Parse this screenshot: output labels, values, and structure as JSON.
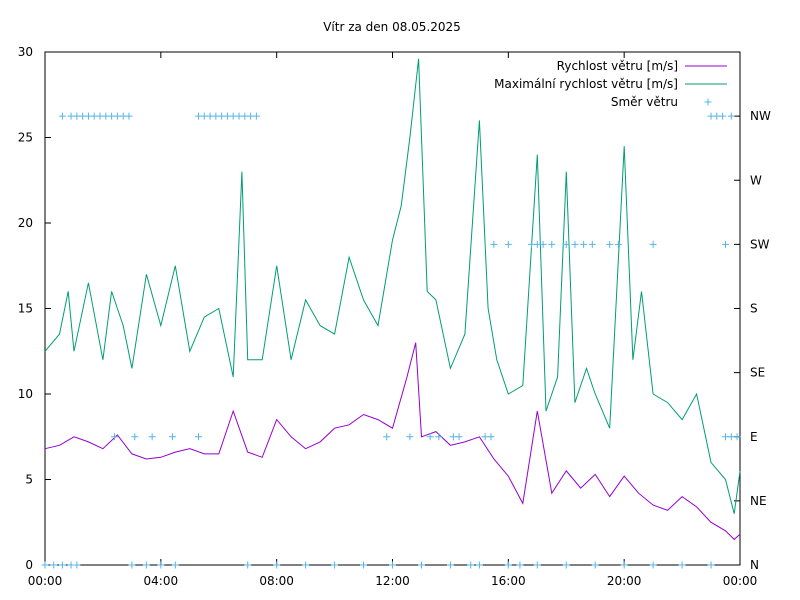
{
  "chart_data": {
    "type": "line",
    "title": "Vítr za den 08.05.2025",
    "x_ticks": [
      "00:00",
      "04:00",
      "08:00",
      "12:00",
      "16:00",
      "20:00",
      "00:00"
    ],
    "xlim_hours": [
      0,
      24
    ],
    "y_left": {
      "ylim": [
        0,
        30
      ],
      "ticks": [
        "0",
        "5",
        "10",
        "15",
        "20",
        "25",
        "30"
      ]
    },
    "y_right": {
      "ticks": [
        "N",
        "NE",
        "E",
        "SE",
        "S",
        "SW",
        "W",
        "NW"
      ]
    },
    "grid": false,
    "legend_position": "top-right",
    "series": [
      {
        "name": "Rychlost větru [m/s]",
        "color": "#9400d3",
        "axis": "left",
        "points": [
          [
            0.0,
            6.8
          ],
          [
            0.5,
            7.0
          ],
          [
            1.0,
            7.5
          ],
          [
            1.5,
            7.2
          ],
          [
            2.0,
            6.8
          ],
          [
            2.5,
            7.6
          ],
          [
            3.0,
            6.5
          ],
          [
            3.5,
            6.2
          ],
          [
            4.0,
            6.3
          ],
          [
            4.5,
            6.6
          ],
          [
            5.0,
            6.8
          ],
          [
            5.5,
            6.5
          ],
          [
            6.0,
            6.5
          ],
          [
            6.5,
            9.0
          ],
          [
            7.0,
            6.6
          ],
          [
            7.5,
            6.3
          ],
          [
            8.0,
            8.5
          ],
          [
            8.5,
            7.5
          ],
          [
            9.0,
            6.8
          ],
          [
            9.5,
            7.2
          ],
          [
            10.0,
            8.0
          ],
          [
            10.5,
            8.2
          ],
          [
            11.0,
            8.8
          ],
          [
            11.5,
            8.5
          ],
          [
            12.0,
            8.0
          ],
          [
            12.5,
            11.0
          ],
          [
            12.8,
            13.0
          ],
          [
            13.0,
            7.5
          ],
          [
            13.5,
            7.8
          ],
          [
            14.0,
            7.0
          ],
          [
            14.5,
            7.2
          ],
          [
            15.0,
            7.5
          ],
          [
            15.5,
            6.2
          ],
          [
            16.0,
            5.2
          ],
          [
            16.5,
            3.6
          ],
          [
            17.0,
            9.0
          ],
          [
            17.5,
            4.2
          ],
          [
            18.0,
            5.5
          ],
          [
            18.5,
            4.5
          ],
          [
            19.0,
            5.3
          ],
          [
            19.5,
            4.0
          ],
          [
            20.0,
            5.2
          ],
          [
            20.5,
            4.2
          ],
          [
            21.0,
            3.5
          ],
          [
            21.5,
            3.2
          ],
          [
            22.0,
            4.0
          ],
          [
            22.5,
            3.4
          ],
          [
            23.0,
            2.5
          ],
          [
            23.5,
            2.0
          ],
          [
            23.8,
            1.5
          ],
          [
            24.0,
            1.8
          ]
        ]
      },
      {
        "name": "Maximální rychlost větru [m/s]",
        "color": "#009e73",
        "axis": "left",
        "points": [
          [
            0.0,
            12.5
          ],
          [
            0.5,
            13.5
          ],
          [
            0.8,
            16.0
          ],
          [
            1.0,
            12.5
          ],
          [
            1.5,
            16.5
          ],
          [
            2.0,
            12.0
          ],
          [
            2.3,
            16.0
          ],
          [
            2.7,
            14.0
          ],
          [
            3.0,
            11.5
          ],
          [
            3.5,
            17.0
          ],
          [
            4.0,
            14.0
          ],
          [
            4.5,
            17.5
          ],
          [
            5.0,
            12.5
          ],
          [
            5.5,
            14.5
          ],
          [
            6.0,
            15.0
          ],
          [
            6.5,
            11.0
          ],
          [
            6.8,
            23.0
          ],
          [
            7.0,
            12.0
          ],
          [
            7.5,
            12.0
          ],
          [
            8.0,
            17.5
          ],
          [
            8.5,
            12.0
          ],
          [
            9.0,
            15.5
          ],
          [
            9.5,
            14.0
          ],
          [
            10.0,
            13.5
          ],
          [
            10.5,
            18.0
          ],
          [
            11.0,
            15.5
          ],
          [
            11.5,
            14.0
          ],
          [
            12.0,
            19.0
          ],
          [
            12.3,
            21.0
          ],
          [
            12.6,
            25.0
          ],
          [
            12.9,
            29.6
          ],
          [
            13.2,
            16.0
          ],
          [
            13.5,
            15.5
          ],
          [
            14.0,
            11.5
          ],
          [
            14.5,
            13.5
          ],
          [
            15.0,
            26.0
          ],
          [
            15.3,
            15.0
          ],
          [
            15.6,
            12.0
          ],
          [
            16.0,
            10.0
          ],
          [
            16.5,
            10.5
          ],
          [
            17.0,
            24.0
          ],
          [
            17.3,
            9.0
          ],
          [
            17.7,
            11.0
          ],
          [
            18.0,
            23.0
          ],
          [
            18.3,
            9.5
          ],
          [
            18.7,
            11.5
          ],
          [
            19.0,
            10.0
          ],
          [
            19.5,
            8.0
          ],
          [
            20.0,
            24.5
          ],
          [
            20.3,
            12.0
          ],
          [
            20.6,
            16.0
          ],
          [
            21.0,
            10.0
          ],
          [
            21.5,
            9.5
          ],
          [
            22.0,
            8.5
          ],
          [
            22.5,
            10.0
          ],
          [
            23.0,
            6.0
          ],
          [
            23.5,
            5.0
          ],
          [
            23.8,
            3.0
          ],
          [
            24.0,
            5.5
          ]
        ]
      },
      {
        "name": "Směr větru",
        "color": "#56b4e9",
        "axis": "right",
        "style": "points",
        "points": [
          [
            0.0,
            0
          ],
          [
            0.3,
            0
          ],
          [
            0.6,
            0
          ],
          [
            0.9,
            0
          ],
          [
            1.1,
            0
          ],
          [
            0.6,
            7
          ],
          [
            0.9,
            7
          ],
          [
            1.1,
            7
          ],
          [
            1.3,
            7
          ],
          [
            1.5,
            7
          ],
          [
            1.7,
            7
          ],
          [
            1.9,
            7
          ],
          [
            2.1,
            7
          ],
          [
            2.3,
            7
          ],
          [
            2.5,
            7
          ],
          [
            2.7,
            7
          ],
          [
            2.9,
            7
          ],
          [
            2.4,
            2
          ],
          [
            3.1,
            2
          ],
          [
            3.7,
            2
          ],
          [
            4.4,
            2
          ],
          [
            5.3,
            2
          ],
          [
            3.0,
            0
          ],
          [
            3.5,
            0
          ],
          [
            4.0,
            0
          ],
          [
            4.5,
            0
          ],
          [
            5.3,
            7
          ],
          [
            5.5,
            7
          ],
          [
            5.7,
            7
          ],
          [
            5.9,
            7
          ],
          [
            6.1,
            7
          ],
          [
            6.3,
            7
          ],
          [
            6.5,
            7
          ],
          [
            6.7,
            7
          ],
          [
            6.9,
            7
          ],
          [
            7.1,
            7
          ],
          [
            7.3,
            7
          ],
          [
            7.0,
            0
          ],
          [
            8.0,
            0
          ],
          [
            9.0,
            0
          ],
          [
            10.0,
            0
          ],
          [
            11.0,
            0
          ],
          [
            11.8,
            2
          ],
          [
            12.0,
            0
          ],
          [
            12.6,
            2
          ],
          [
            13.0,
            0
          ],
          [
            13.3,
            2
          ],
          [
            13.6,
            2
          ],
          [
            14.0,
            0
          ],
          [
            14.1,
            2
          ],
          [
            14.3,
            2
          ],
          [
            14.7,
            0
          ],
          [
            15.0,
            0
          ],
          [
            15.2,
            2
          ],
          [
            15.4,
            2
          ],
          [
            15.5,
            5
          ],
          [
            16.0,
            5
          ],
          [
            16.0,
            0
          ],
          [
            16.4,
            0
          ],
          [
            16.8,
            5
          ],
          [
            17.0,
            5
          ],
          [
            17.2,
            5
          ],
          [
            17.5,
            5
          ],
          [
            17.0,
            0
          ],
          [
            18.0,
            0
          ],
          [
            18.0,
            5
          ],
          [
            18.3,
            5
          ],
          [
            18.6,
            5
          ],
          [
            18.9,
            5
          ],
          [
            19.0,
            0
          ],
          [
            19.5,
            5
          ],
          [
            19.8,
            5
          ],
          [
            20.0,
            0
          ],
          [
            21.0,
            5
          ],
          [
            21.0,
            0
          ],
          [
            22.0,
            0
          ],
          [
            23.0,
            0
          ],
          [
            23.5,
            5
          ],
          [
            23.0,
            7
          ],
          [
            23.2,
            7
          ],
          [
            23.4,
            7
          ],
          [
            23.7,
            7
          ],
          [
            23.5,
            2
          ],
          [
            23.7,
            2
          ],
          [
            23.9,
            2
          ]
        ]
      }
    ]
  }
}
